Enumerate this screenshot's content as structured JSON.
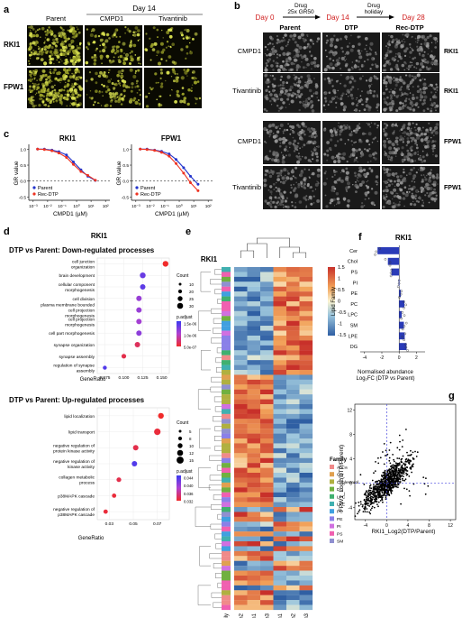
{
  "panels": {
    "a": "a",
    "b": "b",
    "c": "c",
    "d": "d",
    "e": "e",
    "f": "f",
    "g": "g"
  },
  "a": {
    "header": "Day 14",
    "cols": [
      "Parent",
      "CMPD1",
      "Tivantinib"
    ],
    "rows": [
      "RKI1",
      "FPW1"
    ]
  },
  "b": {
    "days": [
      "Day 0",
      "Day 14",
      "Day 28"
    ],
    "arrow1": [
      "Drug",
      "25x GR50"
    ],
    "arrow2": [
      "Drug",
      "holiday"
    ],
    "cols": [
      "Parent",
      "DTP",
      "Rec-DTP"
    ],
    "rows": [
      {
        "drug": "CMPD1",
        "cell": "RKI1"
      },
      {
        "drug": "Tivantinib",
        "cell": "RKI1"
      },
      {
        "drug": "CMPD1",
        "cell": "FPW1"
      },
      {
        "drug": "Tivantinib",
        "cell": "FPW1"
      }
    ]
  },
  "chart_data": [
    {
      "type": "line",
      "title": "RKI1",
      "xlabel": "CMPD1 (µM)",
      "ylabel": "GR value",
      "xscale": "log",
      "xticks": [
        "10⁻³",
        "10⁻²",
        "10⁻¹",
        "10⁰",
        "10¹",
        "10²"
      ],
      "yticks": [
        "-0.5",
        "0.0",
        "0.5",
        "1.0"
      ],
      "ylim": [
        -0.6,
        1.15
      ],
      "series": [
        {
          "name": "Parent",
          "color": "#2233cc",
          "x": [
            0.002,
            0.006,
            0.02,
            0.06,
            0.2,
            0.6,
            2,
            6,
            20
          ],
          "y": [
            1.0,
            1.0,
            0.97,
            0.92,
            0.82,
            0.6,
            0.35,
            0.15,
            0.02
          ]
        },
        {
          "name": "Rec-DTP",
          "color": "#ee3322",
          "x": [
            0.002,
            0.006,
            0.02,
            0.06,
            0.2,
            0.6,
            2,
            6,
            20
          ],
          "y": [
            1.0,
            0.99,
            0.95,
            0.88,
            0.74,
            0.52,
            0.3,
            0.18,
            0.03
          ]
        }
      ]
    },
    {
      "type": "line",
      "title": "FPW1",
      "xlabel": "CMPD1 (µM)",
      "ylabel": "GR value",
      "xscale": "log",
      "xticks": [
        "10⁻³",
        "10⁻²",
        "10⁻¹",
        "10⁰",
        "10¹",
        "10²"
      ],
      "yticks": [
        "-0.5",
        "0.0",
        "0.5",
        "1.0"
      ],
      "ylim": [
        -0.6,
        1.15
      ],
      "series": [
        {
          "name": "Parent",
          "color": "#2233cc",
          "x": [
            0.002,
            0.006,
            0.02,
            0.06,
            0.2,
            0.6,
            2,
            6,
            20
          ],
          "y": [
            1.0,
            1.0,
            0.97,
            0.93,
            0.85,
            0.68,
            0.42,
            0.15,
            -0.1
          ]
        },
        {
          "name": "Rec-DTP",
          "color": "#ee3322",
          "x": [
            0.002,
            0.006,
            0.02,
            0.06,
            0.2,
            0.6,
            2,
            6,
            20
          ],
          "y": [
            1.0,
            0.99,
            0.96,
            0.9,
            0.78,
            0.55,
            0.25,
            -0.05,
            -0.3
          ]
        }
      ]
    },
    {
      "type": "scatter",
      "title": "DTP vs Parent: Down-regulated processes",
      "xlabel": "GeneRatio",
      "xticks": [
        "0.075",
        "0.100",
        "0.125",
        "0.150"
      ],
      "xlim": [
        0.065,
        0.16
      ],
      "categories": [
        "cell junction organization",
        "brain development",
        "cellular component morphogenesis",
        "cell division",
        "plasma membrane bounded cell projection morphogenesis",
        "cell projection morphogenesis",
        "cell part morphogenesis",
        "synapse organization",
        "synapse assembly",
        "regulation of synapse assembly"
      ],
      "values": [
        0.155,
        0.125,
        0.125,
        0.12,
        0.12,
        0.12,
        0.12,
        0.118,
        0.1,
        0.075
      ],
      "legend_count": {
        "title": "Count",
        "labels": [
          "10",
          "20",
          "25",
          "30"
        ]
      },
      "legend_color": {
        "title": "p.adjust",
        "labels": [
          "1.5e-06",
          "1.0e-06",
          "5.0e-07"
        ]
      }
    },
    {
      "type": "scatter",
      "title": "DTP vs Parent: Up-regulated processes",
      "xlabel": "GeneRatio",
      "xticks": [
        "0.03",
        "0.05",
        "0.07"
      ],
      "xlim": [
        0.02,
        0.08
      ],
      "categories": [
        "lipid localization",
        "lipid transport",
        "negative regulation of protein kinase activity",
        "negative regulation of kinase activity",
        "collagen metabolic process",
        "p38MAPK cascade",
        "negative regulation of p38MAPK cascade"
      ],
      "values": [
        0.073,
        0.07,
        0.052,
        0.051,
        0.038,
        0.034,
        0.027
      ],
      "legend_count": {
        "title": "Count",
        "labels": [
          "5",
          "8",
          "10",
          "12",
          "15"
        ]
      },
      "legend_color": {
        "title": "p.adjust",
        "labels": [
          "0.044",
          "0.040",
          "0.036",
          "0.032"
        ]
      }
    },
    {
      "type": "heatmap",
      "title": "RKI1",
      "columns": [
        "Family",
        "Parent_n2",
        "Parent_n1",
        "Parent_n3",
        "DTP_n1",
        "DTP_n2",
        "DTP_n3"
      ],
      "colorbar": [
        "1.5",
        "1",
        "0.5",
        "0",
        "-0.5",
        "-1",
        "-1.5"
      ],
      "family_legend_title": "Family",
      "family_legend": [
        {
          "name": "AcCa",
          "color": "#f08a8a"
        },
        {
          "name": "Cer",
          "color": "#e0a050"
        },
        {
          "name": "Cholesterol",
          "color": "#b0b040"
        },
        {
          "name": "DG",
          "color": "#70b040"
        },
        {
          "name": "LPC",
          "color": "#40b070"
        },
        {
          "name": "LPE",
          "color": "#40b0b0"
        },
        {
          "name": "PC",
          "color": "#40a0e0"
        },
        {
          "name": "PE",
          "color": "#8a80e8"
        },
        {
          "name": "PI",
          "color": "#d070e0"
        },
        {
          "name": "PS",
          "color": "#f060b0"
        },
        {
          "name": "SM",
          "color": "#9090d0"
        }
      ]
    },
    {
      "type": "bar",
      "title": "RKI1",
      "orientation": "horizontal",
      "categories": [
        "Cer",
        "Chol",
        "PS",
        "PI",
        "PE",
        "PC",
        "LPC",
        "SM",
        "LPE",
        "DG"
      ],
      "values": [
        -2.5,
        -1.3,
        -0.9,
        -0.05,
        0.2,
        0.6,
        0.3,
        0.55,
        0.65,
        0.85
      ],
      "xlabel": "Normalised abundance Log₂FC (DTP vs Parent)",
      "ylabel": "Lipid Family",
      "xticks": [
        "-4",
        "-2",
        "0",
        "2"
      ],
      "xlim": [
        -4.5,
        3
      ]
    },
    {
      "type": "scatter",
      "xlabel": "RKI1_Log2(DTP/Parent)",
      "ylabel": "FPW1_Log2(DTP/Parent)",
      "xticks": [
        "-4",
        "0",
        "4",
        "8",
        "12"
      ],
      "yticks": [
        "-4",
        "0",
        "4",
        "8",
        "12"
      ],
      "xlim": [
        -6,
        13
      ],
      "ylim": [
        -6,
        13
      ]
    }
  ],
  "e_labels": {
    "column_family": "Family"
  },
  "f_labels": {
    "xlabel1": "Normalised abundance",
    "xlabel2": "Log₂FC (DTP vs Parent)"
  },
  "colors": {
    "navy": "#2233cc",
    "red": "#ee3322",
    "barblue": "#2a3bb8"
  }
}
